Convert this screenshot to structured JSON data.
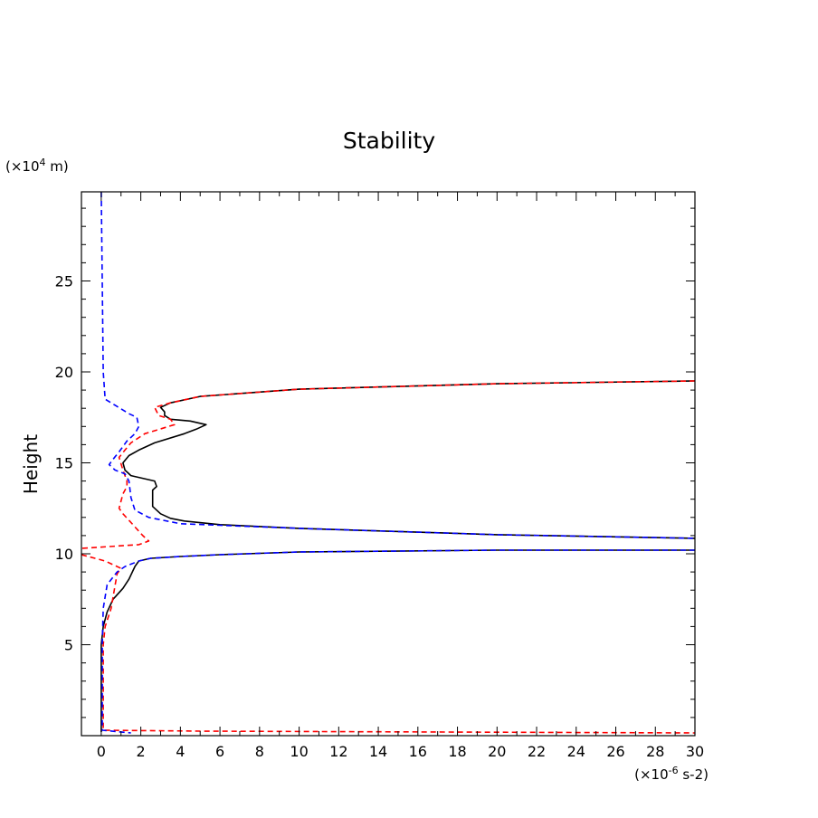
{
  "chart_data": {
    "type": "line",
    "title": "Stability",
    "xlabel": "",
    "ylabel": "Height",
    "x_unit": {
      "prefix": "(×10",
      "exponent": "-6",
      "suffix": " s-2)"
    },
    "y_unit": {
      "prefix": "(×10",
      "exponent": "4",
      "suffix": " m)"
    },
    "xlim": [
      -1,
      30
    ],
    "ylim": [
      0,
      29.9
    ],
    "x_ticks": [
      0,
      2,
      4,
      6,
      8,
      10,
      12,
      14,
      16,
      18,
      20,
      22,
      24,
      26,
      28,
      30
    ],
    "y_ticks": [
      5,
      10,
      15,
      20,
      25
    ],
    "x_minor_step": 1,
    "y_minor_step": 1,
    "grid": false,
    "series": [
      {
        "name": "black-solid",
        "color": "#000000",
        "dash": "solid",
        "points": [
          [
            0,
            0.2
          ],
          [
            0,
            5
          ],
          [
            0.1,
            6
          ],
          [
            0.3,
            6.8
          ],
          [
            0.6,
            7.5
          ],
          [
            1.1,
            8.1
          ],
          [
            1.4,
            8.6
          ],
          [
            1.7,
            9.3
          ],
          [
            1.9,
            9.6
          ],
          [
            2.5,
            9.75
          ],
          [
            4,
            9.85
          ],
          [
            6,
            9.95
          ],
          [
            10,
            10.1
          ],
          [
            20,
            10.2
          ],
          [
            30,
            10.2
          ]
        ]
      },
      {
        "name": "black-solid",
        "color": "#000000",
        "dash": "solid",
        "points": [
          [
            30,
            10.85
          ],
          [
            20,
            11.05
          ],
          [
            10,
            11.4
          ],
          [
            6,
            11.6
          ],
          [
            4.2,
            11.8
          ],
          [
            3.5,
            11.95
          ],
          [
            3,
            12.2
          ],
          [
            2.6,
            12.6
          ],
          [
            2.6,
            13.5
          ],
          [
            2.8,
            13.7
          ],
          [
            2.7,
            14
          ],
          [
            1.5,
            14.3
          ],
          [
            1.2,
            14.6
          ],
          [
            1.1,
            15
          ],
          [
            1.4,
            15.4
          ],
          [
            1.9,
            15.7
          ],
          [
            2.7,
            16.1
          ],
          [
            4.2,
            16.6
          ],
          [
            4.8,
            16.85
          ],
          [
            5.3,
            17.1
          ],
          [
            4.5,
            17.3
          ],
          [
            3.5,
            17.4
          ],
          [
            3.2,
            17.6
          ],
          [
            3.2,
            17.8
          ],
          [
            3,
            18.05
          ],
          [
            3.5,
            18.3
          ],
          [
            5,
            18.65
          ],
          [
            10,
            19.05
          ],
          [
            20,
            19.35
          ],
          [
            30,
            19.5
          ]
        ]
      },
      {
        "name": "red-dashed",
        "color": "#ff0000",
        "dash": "dashed",
        "points": [
          [
            30,
            19.5
          ],
          [
            20,
            19.35
          ],
          [
            10,
            19.05
          ],
          [
            5,
            18.65
          ],
          [
            3.5,
            18.3
          ],
          [
            2.7,
            18.05
          ],
          [
            2.9,
            17.6
          ],
          [
            3.5,
            17.4
          ],
          [
            3.7,
            17.1
          ],
          [
            2.2,
            16.6
          ],
          [
            1.5,
            16.1
          ],
          [
            1.2,
            15.7
          ],
          [
            0.9,
            15.3
          ],
          [
            1.1,
            14.6
          ],
          [
            1.3,
            14
          ],
          [
            1.3,
            13.7
          ],
          [
            1.1,
            13.3
          ],
          [
            0.9,
            12.5
          ],
          [
            1.1,
            12.2
          ],
          [
            1.6,
            11.6
          ],
          [
            2.1,
            11
          ],
          [
            2.4,
            10.7
          ],
          [
            1.9,
            10.5
          ],
          [
            -1,
            10.3
          ]
        ]
      },
      {
        "name": "red-dashed",
        "color": "#ff0000",
        "dash": "dashed",
        "points": [
          [
            -1,
            9.95
          ],
          [
            0.2,
            9.6
          ],
          [
            1,
            9.2
          ],
          [
            0.8,
            8.9
          ],
          [
            0.5,
            7
          ],
          [
            0.2,
            6
          ],
          [
            0.1,
            5
          ],
          [
            0.1,
            0.3
          ],
          [
            5,
            0.25
          ],
          [
            30,
            0.15
          ]
        ]
      },
      {
        "name": "blue-dashed",
        "color": "#0000ff",
        "dash": "dashed",
        "points": [
          [
            0,
            29.9
          ],
          [
            0.05,
            25
          ],
          [
            0.1,
            20
          ],
          [
            0.2,
            18.5
          ],
          [
            0.8,
            18.1
          ],
          [
            1.4,
            17.7
          ],
          [
            1.8,
            17.5
          ],
          [
            1.9,
            17
          ],
          [
            1.7,
            16.6
          ],
          [
            1.3,
            16.2
          ],
          [
            0.9,
            15.6
          ],
          [
            0.6,
            15.2
          ],
          [
            0.4,
            14.9
          ],
          [
            0.7,
            14.6
          ],
          [
            1.2,
            14.4
          ],
          [
            1.4,
            14
          ],
          [
            1.5,
            13.1
          ],
          [
            1.7,
            12.4
          ],
          [
            2.4,
            12
          ],
          [
            4,
            11.65
          ],
          [
            10,
            11.4
          ],
          [
            20,
            11.05
          ],
          [
            30,
            10.85
          ]
        ]
      },
      {
        "name": "blue-dashed",
        "color": "#0000ff",
        "dash": "dashed",
        "points": [
          [
            30,
            10.2
          ],
          [
            20,
            10.2
          ],
          [
            10,
            10.1
          ],
          [
            6,
            9.95
          ],
          [
            4,
            9.85
          ],
          [
            2.5,
            9.75
          ],
          [
            1.9,
            9.6
          ],
          [
            1.2,
            9.3
          ],
          [
            0.8,
            9
          ],
          [
            0.3,
            8.3
          ],
          [
            0.1,
            7
          ],
          [
            0.05,
            5
          ],
          [
            0.05,
            0.3
          ],
          [
            1.5,
            0.15
          ]
        ]
      }
    ]
  }
}
